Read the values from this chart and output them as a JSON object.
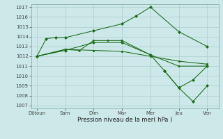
{
  "xlabel": "Pression niveau de la mer( hPa )",
  "xtick_labels": [
    "Dijtoun",
    "Sam",
    "Dim",
    "Mar",
    "Mer",
    "Jeu",
    "Ven"
  ],
  "ytick_min": 1007,
  "ytick_max": 1017,
  "background_color": "#cce8e8",
  "grid_color": "#aacece",
  "line_color": "#1a6b1a",
  "series": [
    {
      "x": [
        0,
        0.33,
        0.66,
        1.0,
        2.0,
        3.0,
        3.5,
        4.0,
        5.0,
        6.0
      ],
      "y": [
        1012.0,
        1013.8,
        1013.9,
        1013.9,
        1014.6,
        1015.3,
        1016.1,
        1017.0,
        1014.5,
        1013.0
      ],
      "marker": "D",
      "markersize": 2.0
    },
    {
      "x": [
        0,
        1.0,
        1.5,
        2.0,
        2.5,
        3.0,
        4.0,
        5.0,
        6.0
      ],
      "y": [
        1012.0,
        1012.7,
        1012.6,
        1013.6,
        1013.6,
        1013.6,
        1012.15,
        1011.0,
        1011.0
      ],
      "marker": ">",
      "markersize": 2.0
    },
    {
      "x": [
        0,
        1.0,
        2.0,
        3.0,
        4.0,
        5.0,
        6.0
      ],
      "y": [
        1012.0,
        1012.7,
        1012.6,
        1012.5,
        1012.0,
        1011.5,
        1011.2
      ],
      "marker": "s",
      "markersize": 1.8
    },
    {
      "x": [
        0,
        1.0,
        2.0,
        3.0,
        4.0,
        4.5,
        5.0,
        5.5,
        6.0
      ],
      "y": [
        1012.0,
        1012.6,
        1013.4,
        1013.4,
        1012.15,
        1010.5,
        1008.8,
        1009.6,
        1011.0
      ],
      "marker": "D",
      "markersize": 2.0
    },
    {
      "x": [
        4.5,
        5.0,
        5.5,
        6.0
      ],
      "y": [
        1010.5,
        1008.8,
        1007.4,
        1009.0
      ],
      "marker": "D",
      "markersize": 2.0
    }
  ],
  "xtick_positions": [
    0,
    1,
    2,
    3,
    4,
    5,
    6
  ]
}
